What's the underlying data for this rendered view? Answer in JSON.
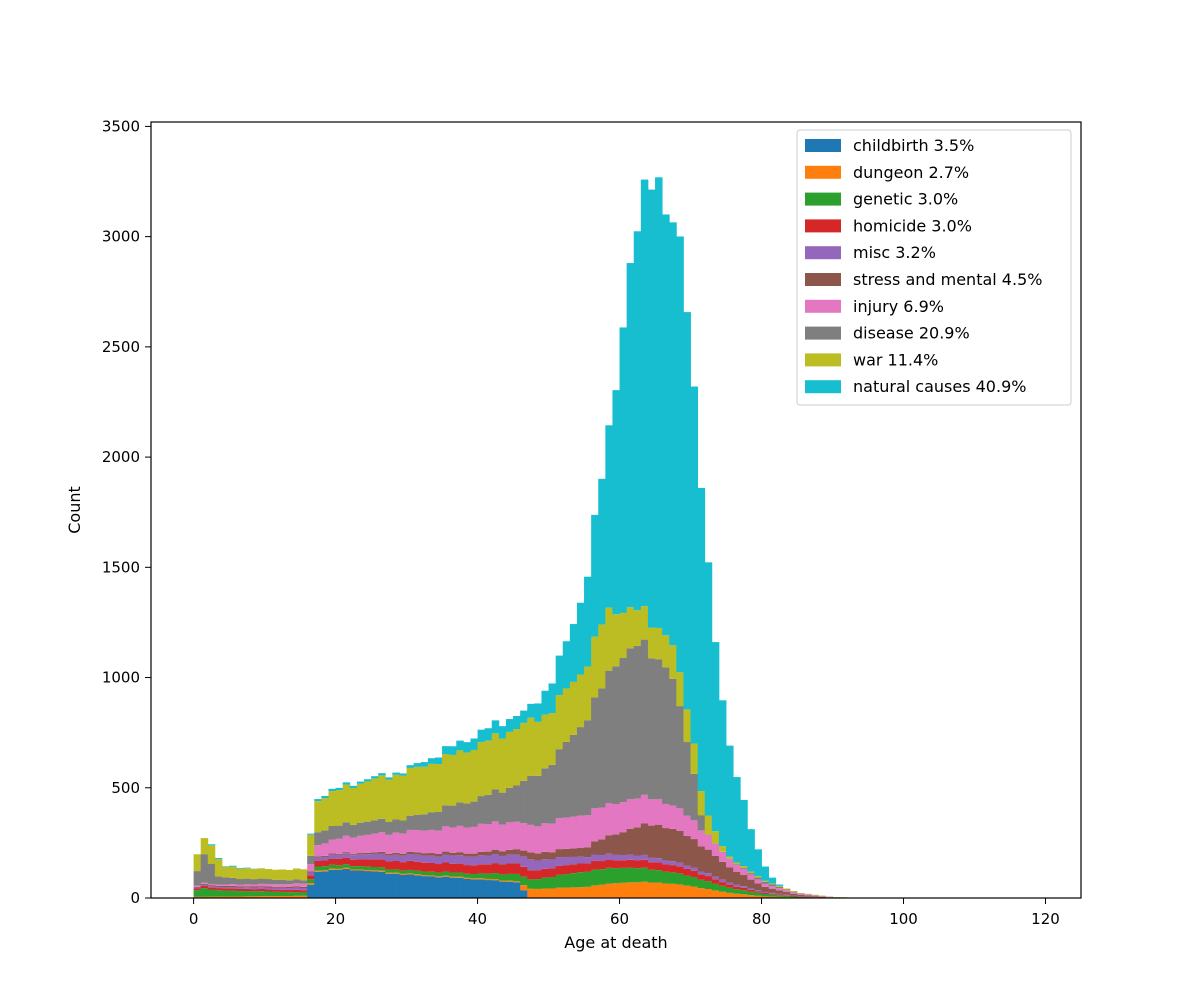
{
  "chart_data": {
    "type": "bar",
    "stacked": true,
    "histogram": true,
    "title": "",
    "xlabel": "Age at death",
    "ylabel": "Count",
    "xlim": [
      -6,
      125
    ],
    "ylim": [
      0,
      3520
    ],
    "bin_width": 1,
    "x_ticks": [
      0,
      20,
      40,
      60,
      80,
      100,
      120
    ],
    "y_ticks": [
      0,
      500,
      1000,
      1500,
      2000,
      2500,
      3000,
      3500
    ],
    "legend_position": "top-right",
    "grid": false,
    "series": [
      {
        "name": "childbirth 3.5%",
        "color": "#1f77b4"
      },
      {
        "name": "dungeon 2.7%",
        "color": "#ff7f0e"
      },
      {
        "name": "genetic 3.0%",
        "color": "#2ca02c"
      },
      {
        "name": "homicide 3.0%",
        "color": "#d62728"
      },
      {
        "name": "misc 3.2%",
        "color": "#9467bd"
      },
      {
        "name": "stress and mental 4.5%",
        "color": "#8c564b"
      },
      {
        "name": "injury 6.9%",
        "color": "#e377c2"
      },
      {
        "name": "disease 20.9%",
        "color": "#7f7f7f"
      },
      {
        "name": "war 11.4%",
        "color": "#bcbd22"
      },
      {
        "name": "natural causes 40.9%",
        "color": "#17becf"
      }
    ],
    "cumulative_keypoints": {
      "childbirth": [
        [
          16,
          0
        ],
        [
          17,
          120
        ],
        [
          22,
          130
        ],
        [
          30,
          105
        ],
        [
          40,
          85
        ],
        [
          46,
          70
        ],
        [
          47,
          0
        ],
        [
          110,
          0
        ]
      ],
      "dungeon": [
        [
          0,
          5
        ],
        [
          16,
          10
        ],
        [
          17,
          125
        ],
        [
          22,
          135
        ],
        [
          30,
          110
        ],
        [
          40,
          90
        ],
        [
          46,
          75
        ],
        [
          47,
          40
        ],
        [
          55,
          50
        ],
        [
          60,
          70
        ],
        [
          65,
          72
        ],
        [
          70,
          55
        ],
        [
          75,
          25
        ],
        [
          80,
          8
        ],
        [
          85,
          2
        ],
        [
          90,
          0
        ],
        [
          110,
          0
        ]
      ],
      "genetic": [
        [
          0,
          20
        ],
        [
          1,
          50
        ],
        [
          3,
          35
        ],
        [
          16,
          25
        ],
        [
          17,
          145
        ],
        [
          22,
          150
        ],
        [
          30,
          125
        ],
        [
          40,
          110
        ],
        [
          46,
          110
        ],
        [
          47,
          80
        ],
        [
          55,
          120
        ],
        [
          60,
          140
        ],
        [
          65,
          130
        ],
        [
          70,
          100
        ],
        [
          75,
          50
        ],
        [
          80,
          20
        ],
        [
          85,
          5
        ],
        [
          90,
          0
        ],
        [
          110,
          0
        ]
      ],
      "homicide": [
        [
          0,
          25
        ],
        [
          1,
          60
        ],
        [
          3,
          45
        ],
        [
          16,
          35
        ],
        [
          17,
          170
        ],
        [
          22,
          180
        ],
        [
          30,
          165
        ],
        [
          40,
          150
        ],
        [
          46,
          160
        ],
        [
          47,
          120
        ],
        [
          55,
          160
        ],
        [
          60,
          175
        ],
        [
          65,
          165
        ],
        [
          70,
          130
        ],
        [
          75,
          65
        ],
        [
          80,
          25
        ],
        [
          85,
          7
        ],
        [
          90,
          0
        ],
        [
          110,
          0
        ]
      ],
      "misc": [
        [
          0,
          28
        ],
        [
          1,
          65
        ],
        [
          3,
          50
        ],
        [
          16,
          45
        ],
        [
          17,
          185
        ],
        [
          22,
          200
        ],
        [
          30,
          195
        ],
        [
          40,
          190
        ],
        [
          46,
          200
        ],
        [
          47,
          170
        ],
        [
          55,
          190
        ],
        [
          60,
          200
        ],
        [
          65,
          185
        ],
        [
          70,
          145
        ],
        [
          75,
          75
        ],
        [
          80,
          30
        ],
        [
          85,
          8
        ],
        [
          90,
          0
        ],
        [
          110,
          0
        ]
      ],
      "stress": [
        [
          0,
          30
        ],
        [
          1,
          70
        ],
        [
          3,
          55
        ],
        [
          16,
          50
        ],
        [
          17,
          190
        ],
        [
          22,
          205
        ],
        [
          30,
          205
        ],
        [
          40,
          205
        ],
        [
          46,
          225
        ],
        [
          47,
          200
        ],
        [
          55,
          230
        ],
        [
          60,
          300
        ],
        [
          65,
          340
        ],
        [
          70,
          280
        ],
        [
          75,
          150
        ],
        [
          80,
          55
        ],
        [
          85,
          15
        ],
        [
          90,
          2
        ],
        [
          95,
          0
        ],
        [
          110,
          0
        ]
      ],
      "injury": [
        [
          0,
          35
        ],
        [
          1,
          75
        ],
        [
          3,
          60
        ],
        [
          16,
          65
        ],
        [
          17,
          240
        ],
        [
          22,
          280
        ],
        [
          30,
          300
        ],
        [
          40,
          330
        ],
        [
          46,
          350
        ],
        [
          47,
          320
        ],
        [
          55,
          380
        ],
        [
          60,
          440
        ],
        [
          65,
          460
        ],
        [
          70,
          370
        ],
        [
          75,
          190
        ],
        [
          80,
          70
        ],
        [
          85,
          20
        ],
        [
          90,
          3
        ],
        [
          95,
          0
        ],
        [
          110,
          0
        ]
      ],
      "disease": [
        [
          0,
          40
        ],
        [
          1,
          200
        ],
        [
          2,
          210
        ],
        [
          3,
          100
        ],
        [
          5,
          90
        ],
        [
          16,
          80
        ],
        [
          17,
          300
        ],
        [
          22,
          340
        ],
        [
          30,
          360
        ],
        [
          40,
          450
        ],
        [
          46,
          520
        ],
        [
          47,
          530
        ],
        [
          50,
          600
        ],
        [
          55,
          800
        ],
        [
          60,
          1100
        ],
        [
          63,
          1150
        ],
        [
          65,
          1100
        ],
        [
          67,
          1050
        ],
        [
          70,
          650
        ],
        [
          72,
          300
        ],
        [
          75,
          190
        ],
        [
          80,
          80
        ],
        [
          85,
          22
        ],
        [
          90,
          4
        ],
        [
          95,
          0
        ],
        [
          110,
          0
        ]
      ],
      "war": [
        [
          0,
          100
        ],
        [
          1,
          290
        ],
        [
          2,
          270
        ],
        [
          3,
          210
        ],
        [
          4,
          140
        ],
        [
          5,
          140
        ],
        [
          10,
          130
        ],
        [
          16,
          130
        ],
        [
          17,
          440
        ],
        [
          22,
          510
        ],
        [
          30,
          570
        ],
        [
          40,
          690
        ],
        [
          46,
          780
        ],
        [
          47,
          790
        ],
        [
          50,
          840
        ],
        [
          55,
          1040
        ],
        [
          58,
          1280
        ],
        [
          60,
          1320
        ],
        [
          63,
          1300
        ],
        [
          65,
          1240
        ],
        [
          67,
          1200
        ],
        [
          70,
          800
        ],
        [
          72,
          400
        ],
        [
          75,
          200
        ],
        [
          80,
          85
        ],
        [
          85,
          25
        ],
        [
          90,
          5
        ],
        [
          95,
          0
        ],
        [
          110,
          0
        ]
      ],
      "natural": [
        [
          0,
          100
        ],
        [
          1,
          290
        ],
        [
          2,
          270
        ],
        [
          3,
          220
        ],
        [
          4,
          140
        ],
        [
          5,
          145
        ],
        [
          10,
          130
        ],
        [
          16,
          130
        ],
        [
          17,
          450
        ],
        [
          22,
          520
        ],
        [
          30,
          580
        ],
        [
          40,
          745
        ],
        [
          46,
          840
        ],
        [
          47,
          840
        ],
        [
          50,
          960
        ],
        [
          53,
          1190
        ],
        [
          55,
          1400
        ],
        [
          57,
          1800
        ],
        [
          59,
          2200
        ],
        [
          61,
          2780
        ],
        [
          63,
          3100
        ],
        [
          65,
          3350
        ],
        [
          67,
          3080
        ],
        [
          69,
          2880
        ],
        [
          71,
          2130
        ],
        [
          73,
          1280
        ],
        [
          75,
          760
        ],
        [
          77,
          500
        ],
        [
          79,
          250
        ],
        [
          81,
          110
        ],
        [
          83,
          45
        ],
        [
          85,
          25
        ],
        [
          87,
          12
        ],
        [
          89,
          6
        ],
        [
          91,
          3
        ],
        [
          95,
          2
        ],
        [
          100,
          2
        ],
        [
          110,
          1
        ],
        [
          111,
          0
        ]
      ]
    }
  }
}
